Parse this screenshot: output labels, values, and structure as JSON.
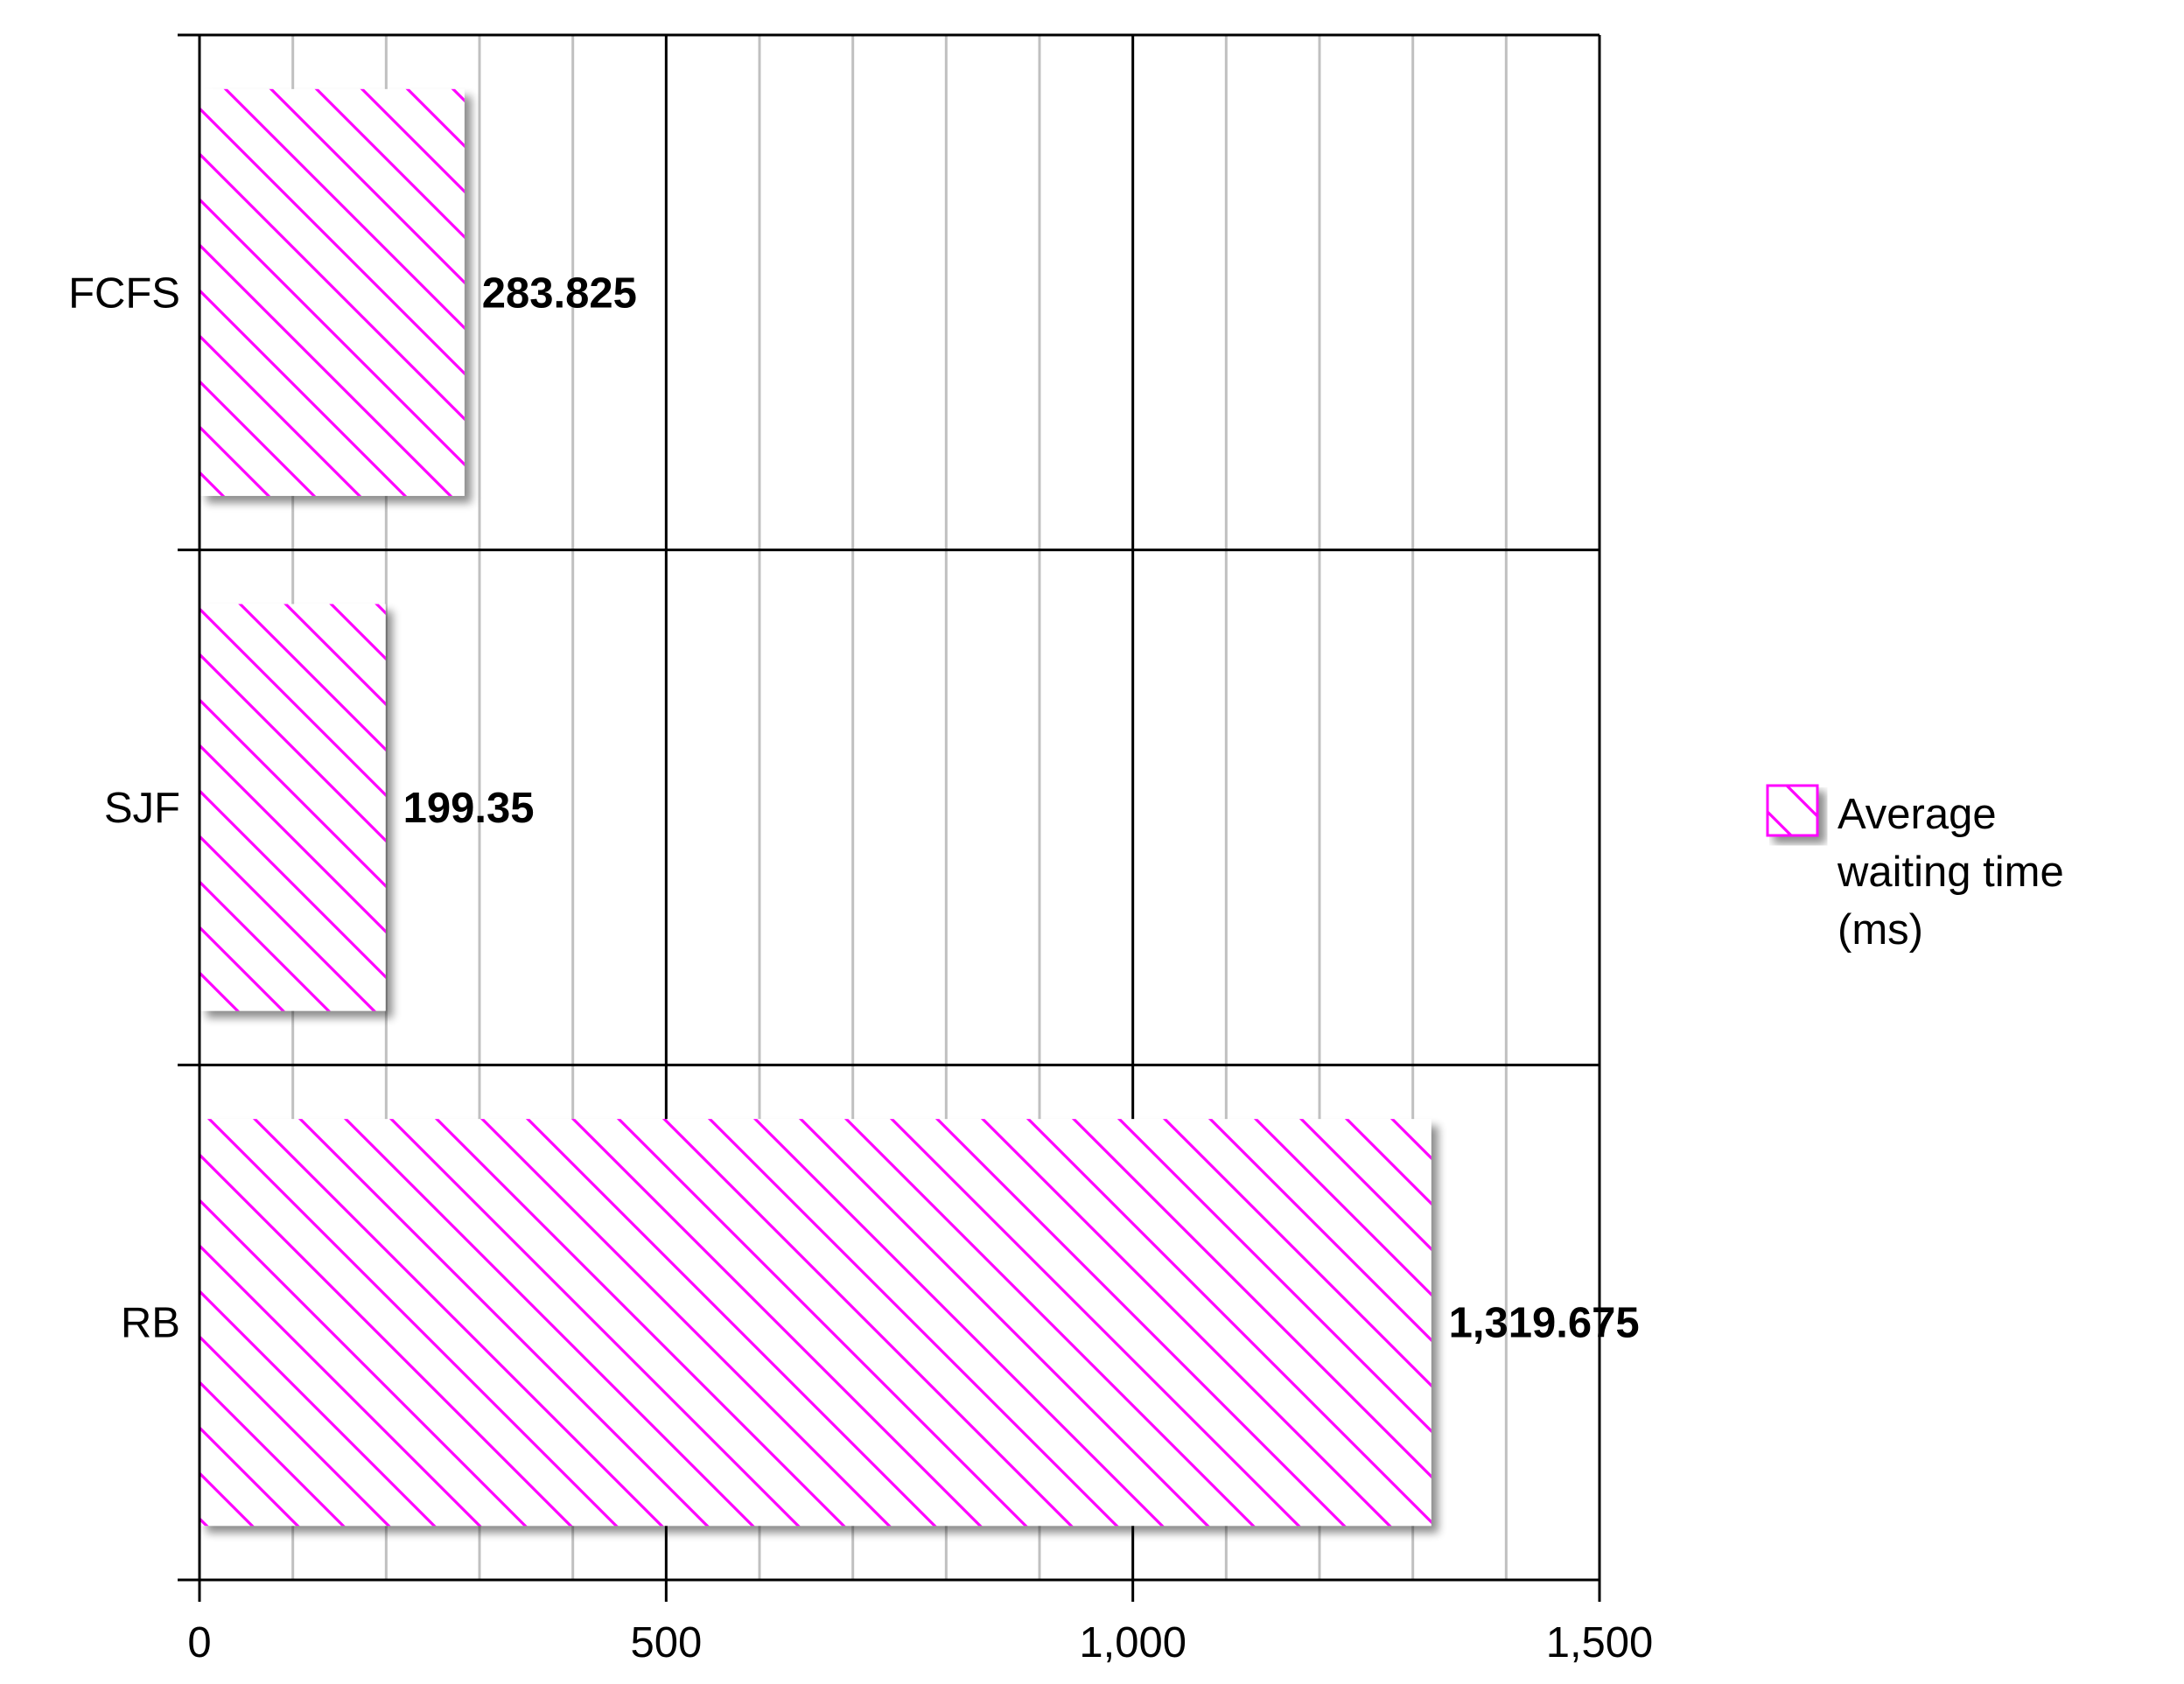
{
  "chart_data": {
    "type": "bar",
    "orientation": "horizontal",
    "categories": [
      "FCFS",
      "SJF",
      "RB"
    ],
    "series": [
      {
        "name": "Average waiting time (ms)",
        "legend_lines": [
          "Average",
          "waiting time",
          "(ms)"
        ],
        "values": [
          283.825,
          199.35,
          1319.675
        ],
        "data_labels": [
          "283.825",
          "199.35",
          "1,319.675"
        ],
        "color": "#ff00ff",
        "pattern": "diagonal-hatch"
      }
    ],
    "xlim": [
      0,
      1500
    ],
    "x_ticks": [
      0,
      500,
      1000,
      1500
    ],
    "x_tick_labels": [
      "0",
      "500",
      "1,000",
      "1,500"
    ],
    "minor_step": 100,
    "grid": true,
    "legend_position": "right",
    "title": "",
    "xlabel": "",
    "ylabel": ""
  },
  "colors": {
    "hatch": "#ff00ff",
    "grid_minor": "#c0c0c0",
    "grid_major": "#000000",
    "shadow": "#bbbbbb"
  }
}
